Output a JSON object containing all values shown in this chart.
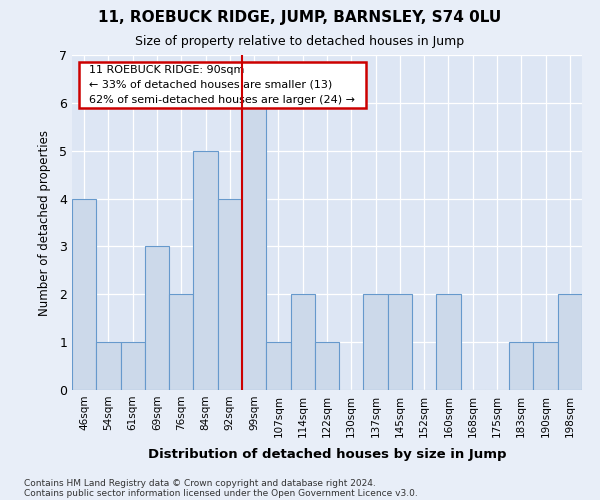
{
  "title": "11, ROEBUCK RIDGE, JUMP, BARNSLEY, S74 0LU",
  "subtitle": "Size of property relative to detached houses in Jump",
  "xlabel": "Distribution of detached houses by size in Jump",
  "ylabel": "Number of detached properties",
  "categories": [
    "46sqm",
    "54sqm",
    "61sqm",
    "69sqm",
    "76sqm",
    "84sqm",
    "92sqm",
    "99sqm",
    "107sqm",
    "114sqm",
    "122sqm",
    "130sqm",
    "137sqm",
    "145sqm",
    "152sqm",
    "160sqm",
    "168sqm",
    "175sqm",
    "183sqm",
    "190sqm",
    "198sqm"
  ],
  "values": [
    4,
    1,
    1,
    3,
    2,
    5,
    4,
    6,
    1,
    2,
    1,
    0,
    2,
    2,
    0,
    2,
    0,
    0,
    1,
    1,
    2
  ],
  "bar_color": "#ccd9ea",
  "bar_edge_color": "#6699cc",
  "redline_x": 6.5,
  "ylim": [
    0,
    7
  ],
  "yticks": [
    0,
    1,
    2,
    3,
    4,
    5,
    6,
    7
  ],
  "annotation_title": "11 ROEBUCK RIDGE: 90sqm",
  "annotation_line1": "← 33% of detached houses are smaller (13)",
  "annotation_line2": "62% of semi-detached houses are larger (24) →",
  "annotation_box_color": "#ffffff",
  "annotation_box_edge": "#cc0000",
  "footer1": "Contains HM Land Registry data © Crown copyright and database right 2024.",
  "footer2": "Contains public sector information licensed under the Open Government Licence v3.0.",
  "background_color": "#e8eef8",
  "plot_background": "#dde6f4"
}
